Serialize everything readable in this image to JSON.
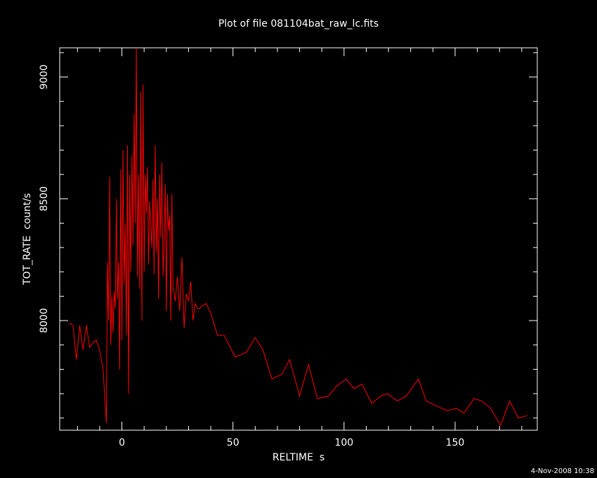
{
  "chart_data": {
    "type": "line",
    "title": "Plot of file 081104bat_raw_lc.fits",
    "xlabel": "RELTIME  s",
    "ylabel": "TOT_RATE  count/s",
    "xlim": [
      -28,
      187
    ],
    "ylim": [
      7550,
      9120
    ],
    "x_ticks": [
      0,
      50,
      100,
      150
    ],
    "y_ticks": [
      8000,
      8500,
      9000
    ],
    "background": "#000000",
    "axis_color": "#ffffff",
    "line_color": "#ff0000",
    "grid": false,
    "footer_text": "4-Nov-2008 10:38",
    "series": [
      {
        "x": [
          -23.5,
          -22.0,
          -20.5,
          -19.0,
          -17.5,
          -16.0,
          -14.5,
          -13.0,
          -11.5,
          -10.0,
          -8.5,
          -7.0,
          -6.5,
          -6.0,
          -5.5,
          -5.0,
          -4.5,
          -4.0,
          -3.5,
          -3.0,
          -2.5,
          -2.0,
          -1.5,
          -1.0,
          -0.5,
          0.0,
          0.5,
          1.0,
          1.5,
          2.0,
          2.5,
          3.0,
          3.5,
          4.0,
          4.5,
          5.0,
          5.5,
          6.0,
          6.5,
          7.0,
          7.5,
          8.0,
          8.5,
          9.0,
          9.5,
          10.0,
          10.5,
          11.0,
          11.5,
          12.0,
          12.5,
          13.0,
          13.5,
          14.0,
          14.5,
          15.0,
          15.5,
          16.0,
          16.5,
          17.0,
          17.5,
          18.0,
          18.5,
          19.0,
          19.5,
          20.0,
          20.5,
          21.0,
          21.5,
          22.0,
          22.5,
          23.0,
          24.0,
          25.0,
          26.0,
          27.0,
          28.0,
          29.0,
          30.0,
          31.0,
          32.0,
          33.0,
          34.0,
          35.0,
          36.0,
          38.0,
          40.0,
          43.0,
          46.0,
          51.0,
          56.0,
          60.0,
          63.5,
          67.5,
          72.0,
          75.5,
          80.0,
          84.0,
          88.0,
          93.0,
          96.5,
          101.0,
          104.5,
          108.0,
          112.5,
          116.5,
          119.5,
          124.0,
          128.0,
          133.5,
          137.0,
          141.5,
          146.5,
          150.5,
          154.0,
          158.5,
          162.0,
          166.0,
          170.5,
          174.5,
          178.5,
          182.5
        ],
        "y": [
          7990,
          7980,
          7840,
          7980,
          7880,
          7980,
          7890,
          7910,
          7920,
          7880,
          7800,
          7580,
          8240,
          8000,
          8590,
          7900,
          8100,
          7950,
          8120,
          8050,
          8500,
          8090,
          8240,
          7800,
          8620,
          7920,
          8700,
          8150,
          8400,
          7940,
          8720,
          7700,
          8600,
          8200,
          8680,
          8310,
          8850,
          8400,
          9120,
          8180,
          8600,
          8130,
          8940,
          8000,
          8970,
          8200,
          8600,
          8440,
          8630,
          8230,
          8490,
          8390,
          8300,
          8580,
          8190,
          8720,
          8280,
          8500,
          8090,
          8600,
          8340,
          8650,
          8180,
          8320,
          8560,
          8040,
          8520,
          8370,
          8430,
          8000,
          8520,
          8140,
          8080,
          8180,
          8040,
          8260,
          7970,
          8110,
          8080,
          8160,
          8000,
          8070,
          8050,
          8050,
          8060,
          8070,
          8030,
          7940,
          7940,
          7850,
          7870,
          7930,
          7880,
          7760,
          7780,
          7840,
          7690,
          7820,
          7680,
          7690,
          7730,
          7760,
          7720,
          7740,
          7660,
          7690,
          7700,
          7670,
          7690,
          7760,
          7670,
          7650,
          7630,
          7640,
          7620,
          7680,
          7670,
          7640,
          7570,
          7670,
          7600,
          7610
        ]
      }
    ]
  }
}
